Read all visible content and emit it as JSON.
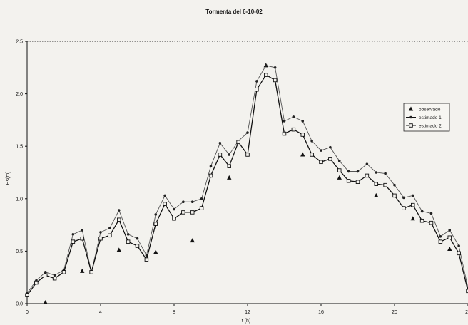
{
  "chart_data": {
    "type": "line",
    "title": "Tormenta del 6-10-02",
    "xlabel": "t (h)",
    "ylabel": "Hs(m)",
    "xlim": [
      0,
      24
    ],
    "ylim": [
      0,
      2.5
    ],
    "x_ticks": [
      "0",
      "4",
      "8",
      "12",
      "16",
      "20",
      "2"
    ],
    "y_ticks": [
      "0.0",
      "0.5",
      "1.0",
      "1.5",
      "2.0",
      "2.5"
    ],
    "grid": false,
    "legend_position": "right",
    "series": [
      {
        "name": "observado",
        "marker": "triangle",
        "points": [
          [
            1,
            0.01
          ],
          [
            3,
            0.31
          ],
          [
            5,
            0.51
          ],
          [
            7,
            0.49
          ],
          [
            9,
            0.6
          ],
          [
            11,
            1.2
          ],
          [
            13,
            2.27
          ],
          [
            15,
            1.42
          ],
          [
            17,
            1.2
          ],
          [
            19,
            1.03
          ],
          [
            21,
            0.81
          ],
          [
            23,
            0.52
          ]
        ]
      },
      {
        "name": "estimado 1",
        "marker": "dot",
        "points": [
          [
            0,
            0.1
          ],
          [
            0.5,
            0.22
          ],
          [
            1,
            0.3
          ],
          [
            1.5,
            0.27
          ],
          [
            2,
            0.32
          ],
          [
            2.5,
            0.66
          ],
          [
            3,
            0.7
          ],
          [
            3.5,
            0.3
          ],
          [
            4,
            0.68
          ],
          [
            4.5,
            0.72
          ],
          [
            5,
            0.89
          ],
          [
            5.5,
            0.66
          ],
          [
            6,
            0.62
          ],
          [
            6.5,
            0.46
          ],
          [
            7,
            0.85
          ],
          [
            7.5,
            1.03
          ],
          [
            8,
            0.9
          ],
          [
            8.5,
            0.97
          ],
          [
            9,
            0.97
          ],
          [
            9.5,
            1.0
          ],
          [
            10,
            1.31
          ],
          [
            10.5,
            1.53
          ],
          [
            11,
            1.42
          ],
          [
            11.5,
            1.55
          ],
          [
            12,
            1.63
          ],
          [
            12.5,
            2.12
          ],
          [
            13,
            2.27
          ],
          [
            13.5,
            2.25
          ],
          [
            14,
            1.74
          ],
          [
            14.5,
            1.78
          ],
          [
            15,
            1.74
          ],
          [
            15.5,
            1.55
          ],
          [
            16,
            1.46
          ],
          [
            16.5,
            1.49
          ],
          [
            17,
            1.36
          ],
          [
            17.5,
            1.26
          ],
          [
            18,
            1.26
          ],
          [
            18.5,
            1.33
          ],
          [
            19,
            1.25
          ],
          [
            19.5,
            1.24
          ],
          [
            20,
            1.13
          ],
          [
            20.5,
            1.01
          ],
          [
            21,
            1.03
          ],
          [
            21.5,
            0.88
          ],
          [
            22,
            0.86
          ],
          [
            22.5,
            0.64
          ],
          [
            23,
            0.7
          ],
          [
            23.5,
            0.55
          ],
          [
            24,
            0.15
          ]
        ]
      },
      {
        "name": "estimado 2",
        "marker": "square",
        "points": [
          [
            0,
            0.08
          ],
          [
            0.5,
            0.2
          ],
          [
            1,
            0.27
          ],
          [
            1.5,
            0.24
          ],
          [
            2,
            0.3
          ],
          [
            2.5,
            0.59
          ],
          [
            3,
            0.62
          ],
          [
            3.5,
            0.3
          ],
          [
            4,
            0.62
          ],
          [
            4.5,
            0.65
          ],
          [
            5,
            0.8
          ],
          [
            5.5,
            0.59
          ],
          [
            6,
            0.55
          ],
          [
            6.5,
            0.42
          ],
          [
            7,
            0.76
          ],
          [
            7.5,
            0.95
          ],
          [
            8,
            0.81
          ],
          [
            8.5,
            0.87
          ],
          [
            9,
            0.87
          ],
          [
            9.5,
            0.91
          ],
          [
            10,
            1.22
          ],
          [
            10.5,
            1.42
          ],
          [
            11,
            1.31
          ],
          [
            11.5,
            1.54
          ],
          [
            12,
            1.42
          ],
          [
            12.5,
            2.04
          ],
          [
            13,
            2.18
          ],
          [
            13.5,
            2.13
          ],
          [
            14,
            1.62
          ],
          [
            14.5,
            1.66
          ],
          [
            15,
            1.61
          ],
          [
            15.5,
            1.42
          ],
          [
            16,
            1.35
          ],
          [
            16.5,
            1.38
          ],
          [
            17,
            1.27
          ],
          [
            17.5,
            1.17
          ],
          [
            18,
            1.16
          ],
          [
            18.5,
            1.22
          ],
          [
            19,
            1.14
          ],
          [
            19.5,
            1.13
          ],
          [
            20,
            1.03
          ],
          [
            20.5,
            0.91
          ],
          [
            21,
            0.94
          ],
          [
            21.5,
            0.79
          ],
          [
            22,
            0.77
          ],
          [
            22.5,
            0.59
          ],
          [
            23,
            0.63
          ],
          [
            23.5,
            0.48
          ],
          [
            24,
            0.12
          ]
        ]
      }
    ]
  }
}
